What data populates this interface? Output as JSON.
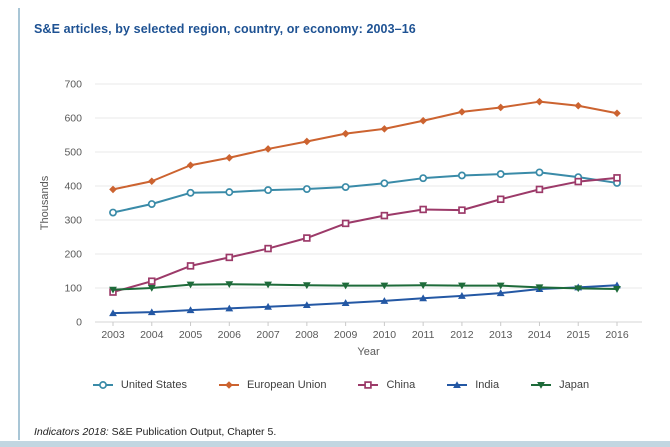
{
  "panel": {
    "title": "S&E articles, by selected region, country, or economy: 2003–16",
    "source_italic": "Indicators 2018:",
    "source_text": " S&E Publication Output, Chapter 5."
  },
  "colors": {
    "title_blue": "#1e5293",
    "axis_text": "#595959",
    "gridline": "#e9e9e9",
    "zero_line": "#d6d6d6",
    "tick_mark": "#c9c9c9",
    "accent_bar": "#c2d6e1",
    "left_border": "#a9c6d6"
  },
  "chart_data": {
    "type": "line",
    "title": "S&E articles, by selected region, country, or economy: 2003–16",
    "xlabel": "Year",
    "ylabel": "Thousands",
    "ylim": [
      0,
      700
    ],
    "ytick_step": 100,
    "y_ticks": [
      0,
      100,
      200,
      300,
      400,
      500,
      600,
      700
    ],
    "grid": true,
    "legend_position": "bottom",
    "x": [
      2003,
      2004,
      2005,
      2006,
      2007,
      2008,
      2009,
      2010,
      2011,
      2012,
      2013,
      2014,
      2015,
      2016
    ],
    "series": [
      {
        "name": "United States",
        "color": "#3a8ba8",
        "marker": "circle-open",
        "values": [
          322,
          347,
          380,
          382,
          388,
          391,
          397,
          408,
          423,
          431,
          435,
          440,
          426,
          409
        ]
      },
      {
        "name": "European Union",
        "color": "#cc6330",
        "marker": "diamond",
        "values": [
          390,
          414,
          461,
          483,
          509,
          531,
          554,
          568,
          592,
          618,
          631,
          648,
          636,
          614
        ]
      },
      {
        "name": "China",
        "color": "#9c3a69",
        "marker": "square-open",
        "values": [
          88,
          120,
          165,
          190,
          216,
          247,
          290,
          313,
          331,
          329,
          361,
          390,
          413,
          424
        ]
      },
      {
        "name": "India",
        "color": "#2458a4",
        "marker": "triangle-up",
        "values": [
          26,
          29,
          35,
          40,
          45,
          50,
          56,
          62,
          70,
          77,
          85,
          97,
          102,
          108
        ]
      },
      {
        "name": "Japan",
        "color": "#1e6b3a",
        "marker": "triangle-down",
        "values": [
          95,
          100,
          110,
          111,
          110,
          108,
          107,
          107,
          108,
          107,
          107,
          102,
          99,
          97
        ]
      }
    ]
  }
}
